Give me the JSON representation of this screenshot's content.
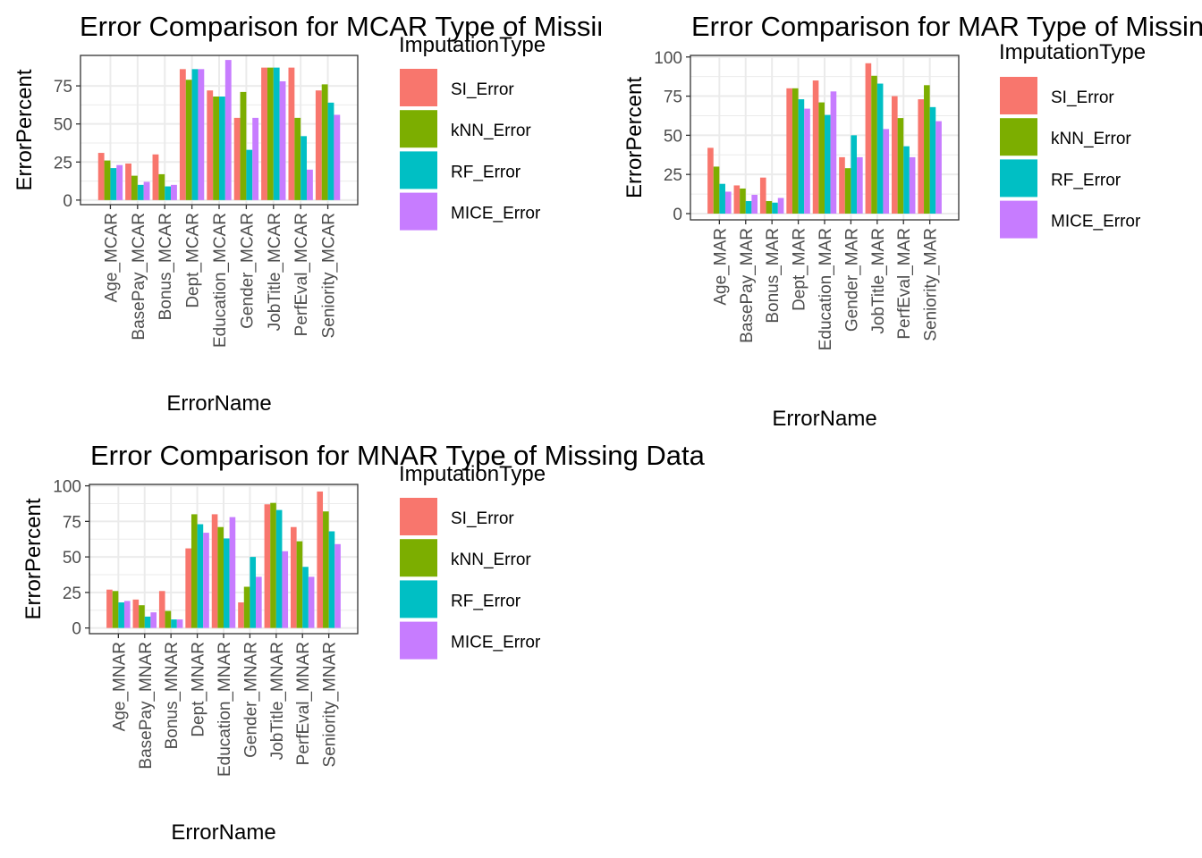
{
  "legend": {
    "title": "ImputationType",
    "items": [
      "SI_Error",
      "kNN_Error",
      "RF_Error",
      "MICE_Error"
    ],
    "colors": [
      "#F8766D",
      "#7CAE00",
      "#00BFC4",
      "#C77CFF"
    ]
  },
  "chart_data": [
    {
      "type": "bar",
      "title": "Error Comparison for MCAR Type of Missing Data",
      "xlabel": "ErrorName",
      "ylabel": "ErrorPercent",
      "ylim": [
        -3,
        95
      ],
      "yticks": [
        0,
        25,
        50,
        75
      ],
      "grid": true,
      "legend_position": "right",
      "categories": [
        "Age_MCAR",
        "BasePay_MCAR",
        "Bonus_MCAR",
        "Dept_MCAR",
        "Education_MCAR",
        "Gender_MCAR",
        "JobTitle_MCAR",
        "PerfEval_MCAR",
        "Seniority_MCAR"
      ],
      "series": [
        {
          "name": "SI_Error",
          "values": [
            31,
            24,
            30,
            86,
            72,
            54,
            87,
            87,
            72
          ]
        },
        {
          "name": "kNN_Error",
          "values": [
            26,
            16,
            17,
            79,
            68,
            71,
            87,
            54,
            76
          ]
        },
        {
          "name": "RF_Error",
          "values": [
            21,
            10,
            9,
            86,
            68,
            33,
            87,
            42,
            64
          ]
        },
        {
          "name": "MICE_Error",
          "values": [
            23,
            12,
            10,
            86,
            92,
            54,
            78,
            20,
            56
          ]
        }
      ]
    },
    {
      "type": "bar",
      "title": "Error Comparison for MAR Type of Missing Data",
      "xlabel": "ErrorName",
      "ylabel": "ErrorPercent",
      "ylim": [
        -4,
        101
      ],
      "yticks": [
        0,
        25,
        50,
        75,
        100
      ],
      "grid": true,
      "legend_position": "right",
      "categories": [
        "Age_MAR",
        "BasePay_MAR",
        "Bonus_MAR",
        "Dept_MAR",
        "Education_MAR",
        "Gender_MAR",
        "JobTitle_MAR",
        "PerfEval_MAR",
        "Seniority_MAR"
      ],
      "series": [
        {
          "name": "SI_Error",
          "values": [
            42,
            18,
            23,
            80,
            85,
            36,
            96,
            75,
            73
          ]
        },
        {
          "name": "kNN_Error",
          "values": [
            30,
            16,
            8,
            80,
            71,
            29,
            88,
            61,
            82
          ]
        },
        {
          "name": "RF_Error",
          "values": [
            19,
            8,
            7,
            73,
            63,
            50,
            83,
            43,
            68
          ]
        },
        {
          "name": "MICE_Error",
          "values": [
            14,
            12,
            10,
            67,
            78,
            36,
            54,
            36,
            59
          ]
        }
      ]
    },
    {
      "type": "bar",
      "title": "Error Comparison for MNAR Type of Missing Data",
      "xlabel": "ErrorName",
      "ylabel": "ErrorPercent",
      "ylim": [
        -4,
        101
      ],
      "yticks": [
        0,
        25,
        50,
        75,
        100
      ],
      "grid": true,
      "legend_position": "right",
      "categories": [
        "Age_MNAR",
        "BasePay_MNAR",
        "Bonus_MNAR",
        "Dept_MNAR",
        "Education_MNAR",
        "Gender_MNAR",
        "JobTitle_MNAR",
        "PerfEval_MNAR",
        "Seniority_MNAR"
      ],
      "series": [
        {
          "name": "SI_Error",
          "values": [
            27,
            20,
            26,
            56,
            80,
            18,
            87,
            71,
            96
          ]
        },
        {
          "name": "kNN_Error",
          "values": [
            26,
            16,
            12,
            80,
            71,
            29,
            88,
            61,
            82
          ]
        },
        {
          "name": "RF_Error",
          "values": [
            18,
            8,
            6,
            73,
            63,
            50,
            83,
            43,
            68
          ]
        },
        {
          "name": "MICE_Error",
          "values": [
            19,
            11,
            6,
            67,
            78,
            36,
            54,
            36,
            59
          ]
        }
      ]
    }
  ]
}
